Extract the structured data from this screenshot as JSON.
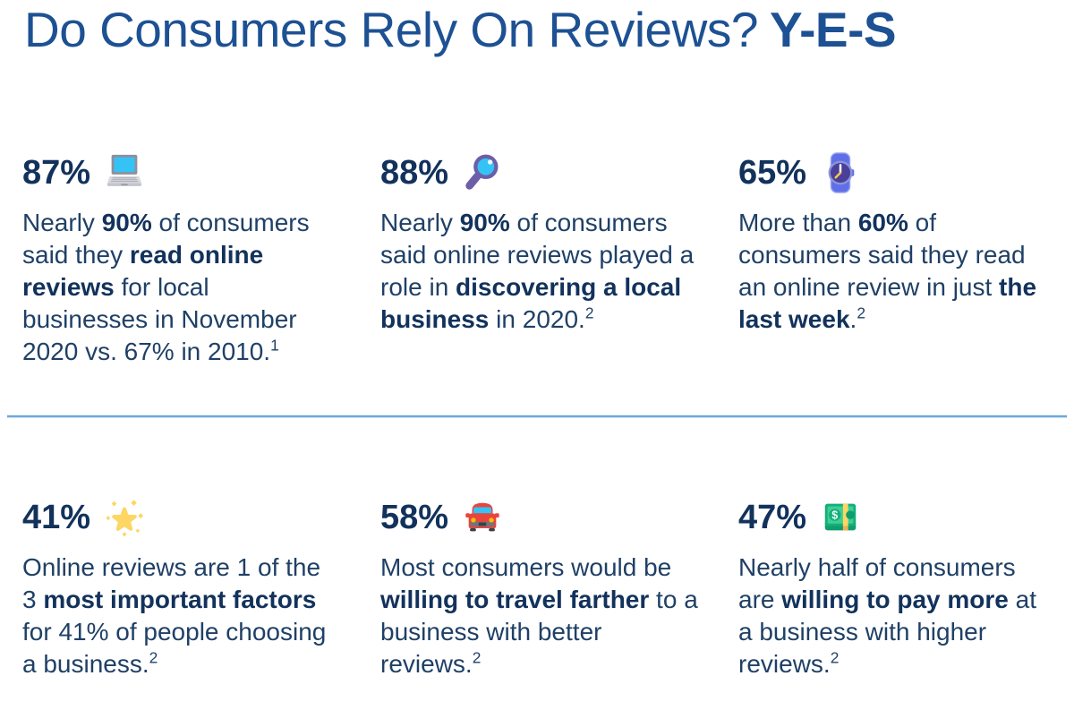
{
  "title": {
    "main": "Do Consumers Rely On Reviews?",
    "emphasis": "Y-E-S"
  },
  "colors": {
    "title": "#1d5193",
    "body": "#1f4066",
    "bold": "#12325c",
    "divider": "#6fa8dc"
  },
  "stats": [
    {
      "value": "87%",
      "icon": "laptop-icon",
      "text_parts": [
        {
          "text": "Nearly ",
          "bold": false
        },
        {
          "text": "90%",
          "bold": true
        },
        {
          "text": " of consumers said they ",
          "bold": false
        },
        {
          "text": "read online reviews",
          "bold": true
        },
        {
          "text": " for local businesses in November 2020 vs. 67% in 2010.",
          "bold": false
        }
      ],
      "footnote": "1"
    },
    {
      "value": "88%",
      "icon": "magnifying-glass-icon",
      "text_parts": [
        {
          "text": "Nearly ",
          "bold": false
        },
        {
          "text": "90%",
          "bold": true
        },
        {
          "text": " of consumers said online reviews played a role in ",
          "bold": false
        },
        {
          "text": "discovering a local business",
          "bold": true
        },
        {
          "text": " in 2020.",
          "bold": false
        }
      ],
      "footnote": "2"
    },
    {
      "value": "65%",
      "icon": "watch-icon",
      "text_parts": [
        {
          "text": "More than ",
          "bold": false
        },
        {
          "text": "60%",
          "bold": true
        },
        {
          "text": " of consumers said they read an online review in just ",
          "bold": false
        },
        {
          "text": "the last week",
          "bold": true
        },
        {
          "text": ".",
          "bold": false
        }
      ],
      "footnote": "2"
    },
    {
      "value": "41%",
      "icon": "glowing-star-icon",
      "text_parts": [
        {
          "text": "Online reviews are 1 of the 3 ",
          "bold": false
        },
        {
          "text": "most important factors",
          "bold": true
        },
        {
          "text": " for 41% of people choosing a business.",
          "bold": false
        }
      ],
      "footnote": "2"
    },
    {
      "value": "58%",
      "icon": "car-icon",
      "text_parts": [
        {
          "text": "Most consumers would be ",
          "bold": false
        },
        {
          "text": "willing to travel farther",
          "bold": true
        },
        {
          "text": " to a business with better reviews.",
          "bold": false
        }
      ],
      "footnote": "2"
    },
    {
      "value": "47%",
      "icon": "money-icon",
      "text_parts": [
        {
          "text": "Nearly half of consumers are ",
          "bold": false
        },
        {
          "text": "willing to pay more",
          "bold": true
        },
        {
          "text": " at a business with higher reviews.",
          "bold": false
        }
      ],
      "footnote": "2"
    }
  ]
}
